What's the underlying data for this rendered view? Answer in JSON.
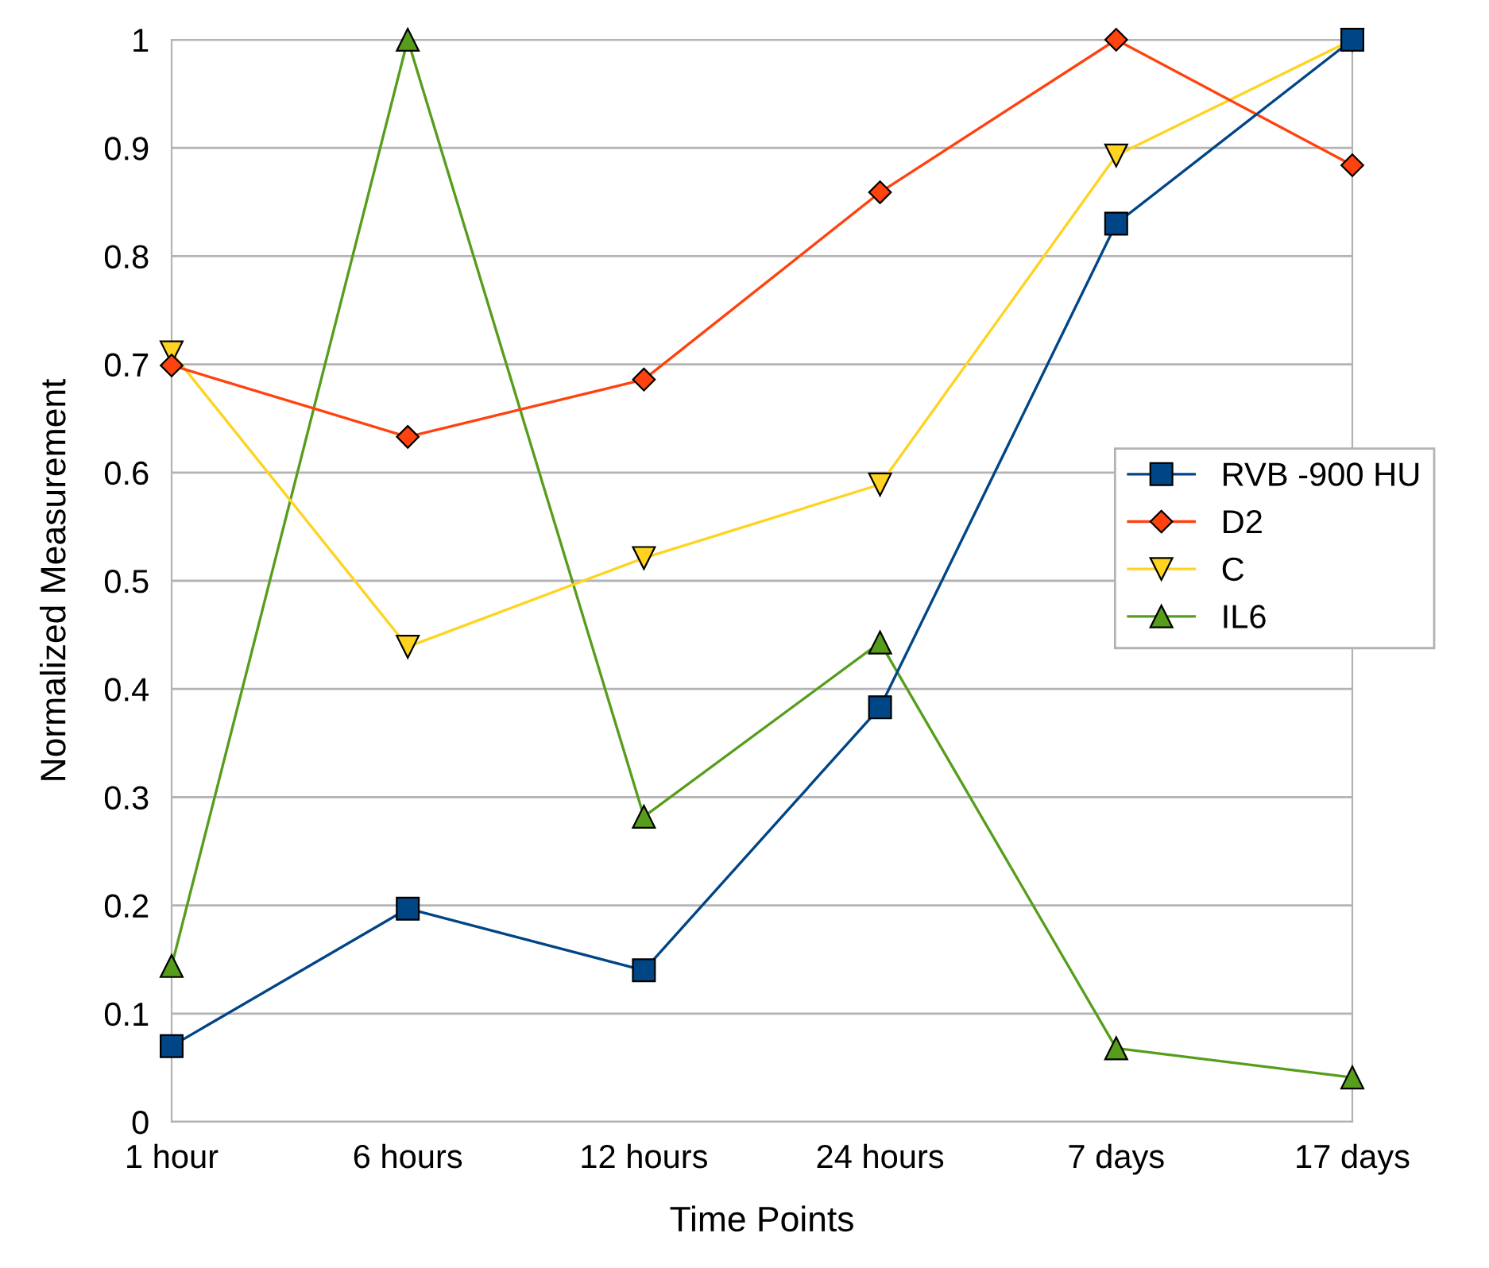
{
  "chart_data": {
    "type": "line",
    "xlabel": "Time Points",
    "ylabel": "Normalized Measurement",
    "categories": [
      "1 hour",
      "6 hours",
      "12 hours",
      "24 hours",
      "7 days",
      "17 days"
    ],
    "series": [
      {
        "name": "RVB -900 HU",
        "color": "#004586",
        "marker": "square",
        "values": [
          0.07,
          0.197,
          0.14,
          0.383,
          0.83,
          1.0
        ]
      },
      {
        "name": "D2",
        "color": "#ff420e",
        "marker": "diamond",
        "values": [
          0.699,
          0.633,
          0.686,
          0.859,
          1.0,
          0.884
        ]
      },
      {
        "name": "C",
        "color": "#ffd320",
        "marker": "triangle-down",
        "values": [
          0.711,
          0.439,
          0.521,
          0.589,
          0.893,
          1.0
        ]
      },
      {
        "name": "IL6",
        "color": "#579d1c",
        "marker": "triangle",
        "values": [
          0.144,
          1.0,
          0.282,
          0.443,
          0.068,
          0.041
        ]
      }
    ],
    "ylim": [
      0,
      1
    ],
    "yticks": [
      0,
      {
        "value": 0.1,
        "label": "0.1"
      },
      {
        "value": 0.2,
        "label": "0.2"
      },
      {
        "value": 0.3,
        "label": "0.3"
      },
      {
        "value": 0.4,
        "label": "0.4"
      },
      {
        "value": 0.5,
        "label": "0.5"
      },
      {
        "value": 0.6,
        "label": "0.6"
      },
      {
        "value": 0.7,
        "label": "0.7"
      },
      {
        "value": 0.8,
        "label": "0.8"
      },
      {
        "value": 0.9,
        "label": "0.9"
      },
      1
    ],
    "grid": "y",
    "legend": "right",
    "line_style": "solid"
  }
}
